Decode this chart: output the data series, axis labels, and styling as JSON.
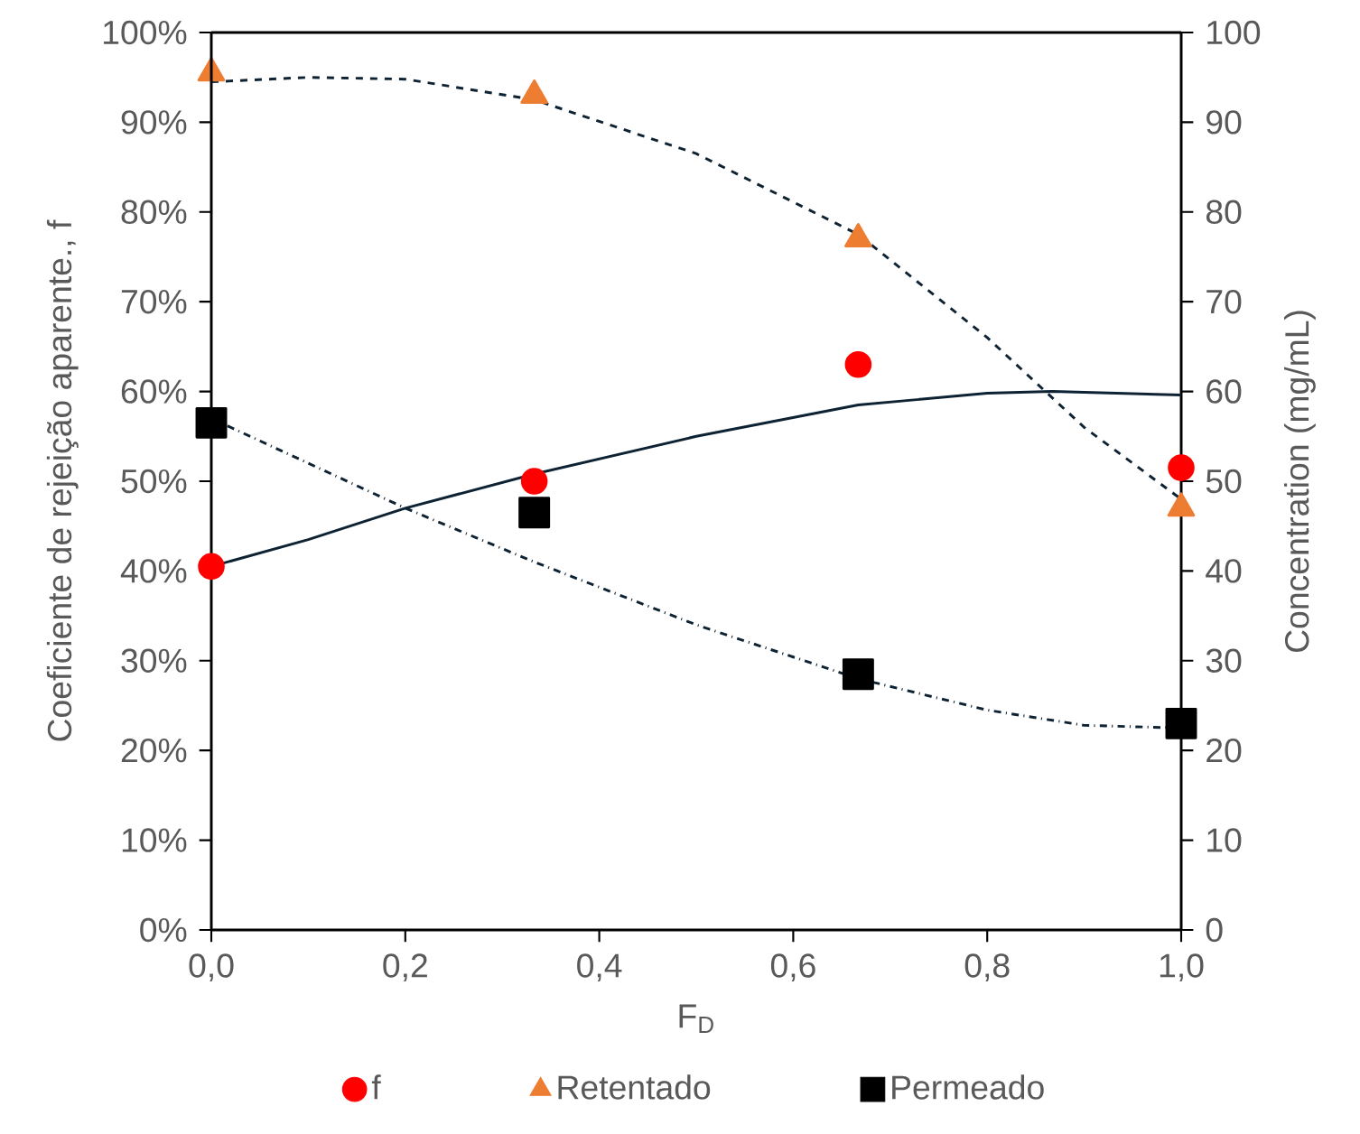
{
  "chart_data": {
    "type": "scatter",
    "xlabel": "F$_{D}$",
    "ylabel": "Coeficiente de rejeição aparente., f",
    "y2label": "Concentration (mg/mL)",
    "x": [
      0,
      0.333,
      0.667,
      1.0
    ],
    "series": [
      {
        "name": "f",
        "color": "#ff0000",
        "marker": "circle",
        "values": [
          40.5,
          50,
          63,
          51.5
        ]
      },
      {
        "name": "Retentado",
        "color": "#ed7d31",
        "marker": "triangle",
        "axis": "y2",
        "values": [
          95.5,
          93,
          77,
          47
        ]
      },
      {
        "name": "Permeado",
        "color": "#000000",
        "marker": "square",
        "axis": "y2",
        "values": [
          56.5,
          46.5,
          28.5,
          23
        ]
      },
      {
        "type": "line",
        "color": "#0d2233",
        "marker": "none",
        "line_style": "solid",
        "x": [
          0,
          0.1,
          0.2,
          0.333,
          0.5,
          0.667,
          0.8,
          0.867,
          1.0
        ],
        "values": [
          40.5,
          43.5,
          47,
          50.8,
          55,
          58.5,
          59.8,
          60,
          59.6
        ]
      },
      {
        "type": "line",
        "color": "#0d2233",
        "marker": "none",
        "line_style": "dashed",
        "axis": "y2",
        "x": [
          0,
          0.1,
          0.2,
          0.333,
          0.5,
          0.667,
          0.8,
          0.9,
          1.0
        ],
        "values": [
          94.5,
          95,
          94.8,
          92.5,
          86.5,
          77.5,
          66,
          56,
          48
        ]
      },
      {
        "type": "line",
        "color": "#0d2233",
        "marker": "none",
        "line_style": "dashdot",
        "axis": "y2",
        "x": [
          0,
          0.2,
          0.333,
          0.5,
          0.667,
          0.8,
          0.9,
          1.0
        ],
        "values": [
          57,
          47,
          41,
          34,
          28,
          24.5,
          22.8,
          22.5
        ]
      }
    ],
    "xlim": [
      0,
      1
    ],
    "xticks": [
      {
        "value": 0,
        "label": "0,0"
      },
      {
        "value": 0.2,
        "label": "0,2"
      },
      {
        "value": 0.4,
        "label": "0,4"
      },
      {
        "value": 0.6,
        "label": "0,6"
      },
      {
        "value": 0.8,
        "label": "0,8"
      },
      {
        "value": 1.0,
        "label": "1,0"
      }
    ],
    "ylim": [
      0,
      100
    ],
    "yticks": [
      {
        "value": 0,
        "label": "0%"
      },
      {
        "value": 10,
        "label": "10%"
      },
      {
        "value": 20,
        "label": "20%"
      },
      {
        "value": 30,
        "label": "30%"
      },
      {
        "value": 40,
        "label": "40%"
      },
      {
        "value": 50,
        "label": "50%"
      },
      {
        "value": 60,
        "label": "60%"
      },
      {
        "value": 70,
        "label": "70%"
      },
      {
        "value": 80,
        "label": "80%"
      },
      {
        "value": 90,
        "label": "90%"
      },
      {
        "value": 100,
        "label": "100%"
      }
    ],
    "y2lim": [
      0,
      100
    ],
    "y2ticks": [
      0,
      10,
      20,
      30,
      40,
      50,
      60,
      70,
      80,
      90,
      100
    ],
    "legend": "bottom",
    "grid": false
  }
}
